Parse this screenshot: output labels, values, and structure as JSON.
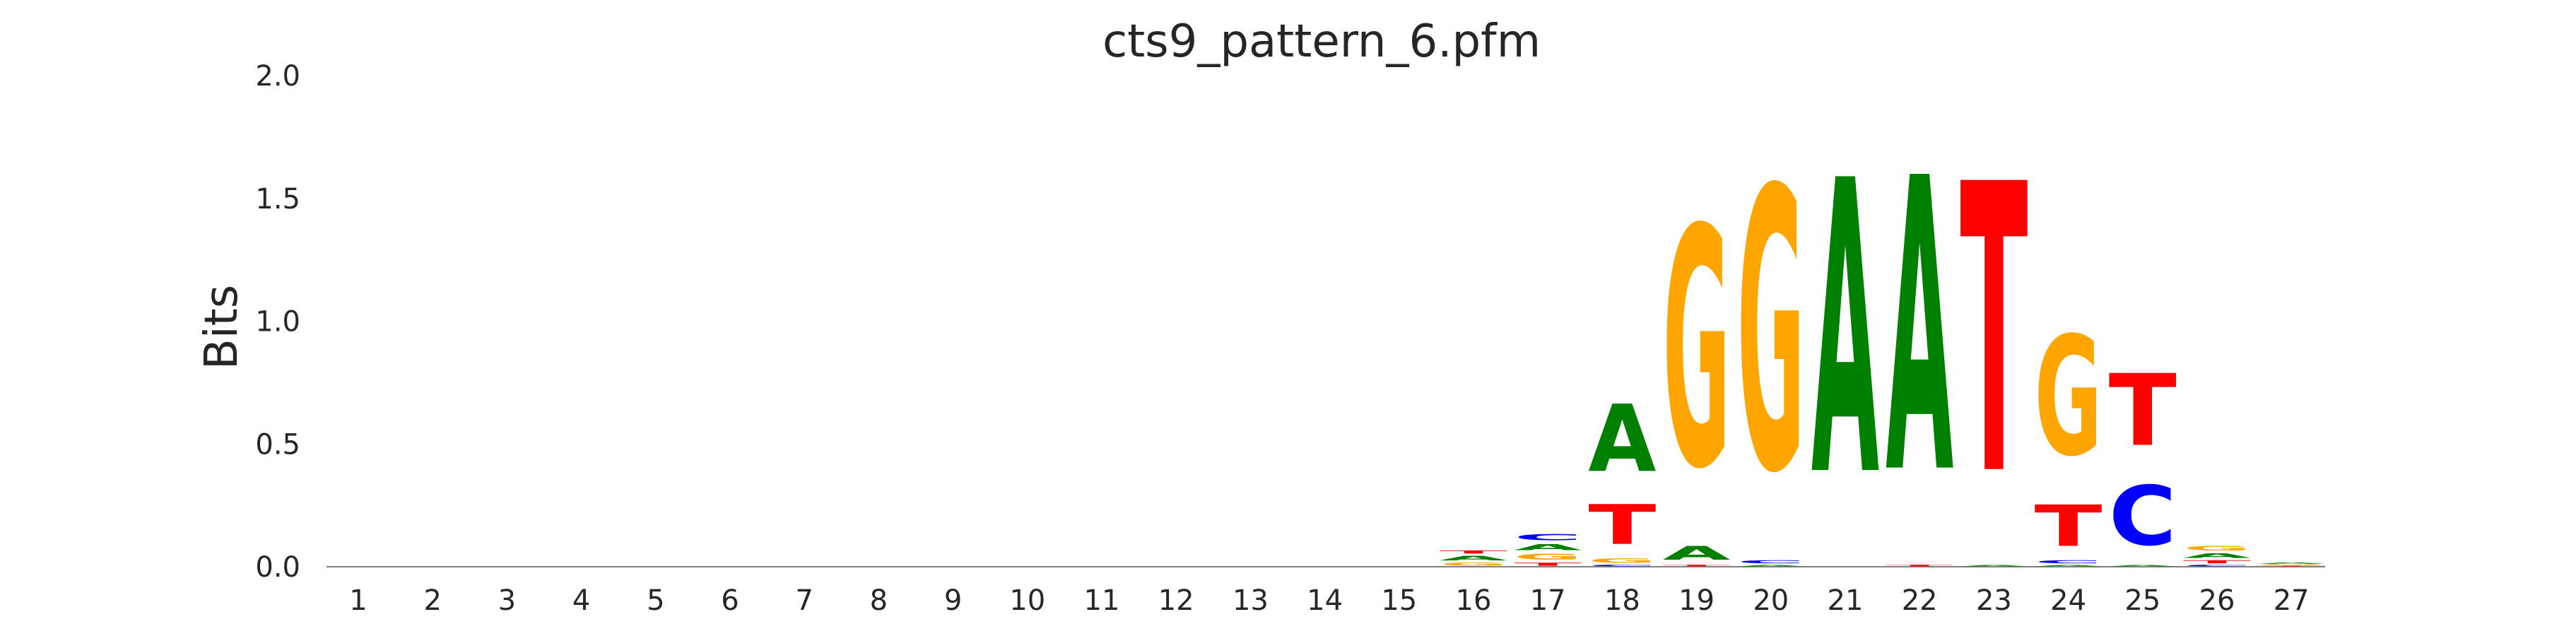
{
  "chart_data": {
    "type": "sequence-logo",
    "title": "cts9_pattern_6.pfm",
    "ylabel": "Bits",
    "xlabel": "",
    "ylim": [
      0,
      2.0
    ],
    "yticks": [
      "0.0",
      "0.5",
      "1.0",
      "1.5",
      "2.0"
    ],
    "ytick_values": [
      0,
      0.5,
      1.0,
      1.5,
      2.0
    ],
    "positions": [
      "1",
      "2",
      "3",
      "4",
      "5",
      "6",
      "7",
      "8",
      "9",
      "10",
      "11",
      "12",
      "13",
      "14",
      "15",
      "16",
      "17",
      "18",
      "19",
      "20",
      "21",
      "22",
      "23",
      "24",
      "25",
      "26",
      "27"
    ],
    "colors": {
      "A": "#008000",
      "C": "#0000ff",
      "G": "#ffa500",
      "T": "#ff0000"
    },
    "stacks": [
      [],
      [],
      [],
      [],
      [],
      [],
      [],
      [],
      [],
      [],
      [],
      [],
      [],
      [],
      [],
      [
        {
          "letter": "G",
          "height": 0.02
        },
        {
          "letter": "A",
          "height": 0.03
        },
        {
          "letter": "T",
          "height": 0.02
        }
      ],
      [
        {
          "letter": "T",
          "height": 0.02
        },
        {
          "letter": "G",
          "height": 0.04
        },
        {
          "letter": "A",
          "height": 0.04
        },
        {
          "letter": "C",
          "height": 0.04
        }
      ],
      [
        {
          "letter": "C",
          "height": 0.01
        },
        {
          "letter": "G",
          "height": 0.03
        },
        {
          "letter": "T",
          "height": 0.26
        },
        {
          "letter": "A",
          "height": 0.44
        }
      ],
      [
        {
          "letter": "T",
          "height": 0.01
        },
        {
          "letter": "A",
          "height": 0.09
        },
        {
          "letter": "G",
          "height": 1.56
        }
      ],
      [
        {
          "letter": "A",
          "height": 0.01
        },
        {
          "letter": "C",
          "height": 0.02
        },
        {
          "letter": "G",
          "height": 1.84
        }
      ],
      [
        {
          "letter": "A",
          "height": 1.92
        }
      ],
      [
        {
          "letter": "T",
          "height": 0.01
        },
        {
          "letter": "A",
          "height": 1.92
        }
      ],
      [
        {
          "letter": "A",
          "height": 0.01
        },
        {
          "letter": "T",
          "height": 1.89
        }
      ],
      [
        {
          "letter": "A",
          "height": 0.01
        },
        {
          "letter": "C",
          "height": 0.02
        },
        {
          "letter": "T",
          "height": 0.27
        },
        {
          "letter": "G",
          "height": 0.78
        }
      ],
      [
        {
          "letter": "A",
          "height": 0.01
        },
        {
          "letter": "C",
          "height": 0.39
        },
        {
          "letter": "T",
          "height": 0.47
        }
      ],
      [
        {
          "letter": "C",
          "height": 0.01
        },
        {
          "letter": "T",
          "height": 0.02
        },
        {
          "letter": "A",
          "height": 0.03
        },
        {
          "letter": "G",
          "height": 0.03
        }
      ],
      [
        {
          "letter": "T",
          "height": 0.005
        },
        {
          "letter": "G",
          "height": 0.005
        },
        {
          "letter": "A",
          "height": 0.01
        }
      ]
    ]
  }
}
